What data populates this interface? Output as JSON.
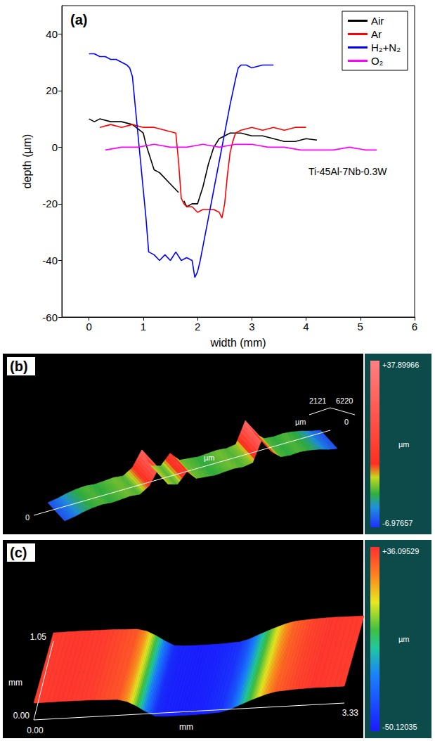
{
  "chart_data": {
    "type": "line",
    "title": "(a)",
    "x_label": "width (mm)",
    "y_label": "depth (µm)",
    "annotation": "Ti-45Al-7Nb-0.3W",
    "xlim": [
      -0.5,
      6
    ],
    "xticks": [
      0,
      1,
      2,
      3,
      4,
      5,
      6
    ],
    "ylim": [
      -60,
      50
    ],
    "yticks": [
      -60,
      -40,
      -20,
      0,
      20,
      40
    ],
    "grid": false,
    "legend": "top-right",
    "series": [
      {
        "name": "Air",
        "color": "#000000",
        "x": [
          0,
          0.1,
          0.2,
          0.4,
          0.6,
          0.8,
          1.0,
          1.05,
          1.1,
          1.2,
          1.3,
          1.4,
          1.5,
          1.6,
          1.65,
          1.7,
          1.75,
          1.8,
          1.9,
          2.0,
          2.1,
          2.2,
          2.3,
          2.4,
          2.6,
          2.8,
          3.0,
          3.2,
          3.4,
          3.6,
          3.8,
          4.0,
          4.2
        ],
        "values": [
          10,
          9,
          10,
          9,
          9,
          8,
          5,
          1,
          -2,
          -8,
          -9,
          -11,
          -13,
          -15,
          -16,
          null,
          -19,
          -21,
          -20,
          -20,
          -14,
          -6,
          0,
          3,
          5,
          5,
          4,
          4,
          3,
          2,
          2,
          3,
          2.5
        ]
      },
      {
        "name": "Ar",
        "color": "#ff0000",
        "x": [
          0.2,
          0.4,
          0.6,
          0.8,
          1.0,
          1.2,
          1.4,
          1.6,
          1.65,
          1.7,
          1.75,
          1.8,
          1.9,
          2.0,
          2.1,
          2.2,
          2.3,
          2.4,
          2.45,
          2.5,
          2.55,
          2.6,
          2.65,
          2.7,
          2.8,
          3.0,
          3.2,
          3.4,
          3.6,
          3.8,
          4.0
        ],
        "values": [
          7,
          8,
          7,
          8,
          7,
          7,
          6,
          5,
          -5,
          -18,
          -20,
          -21,
          -21,
          -23,
          -22,
          -22,
          -22,
          -23,
          -25,
          -20,
          -10,
          -2,
          2,
          5,
          6,
          7,
          6,
          7,
          6,
          7,
          7
        ]
      },
      {
        "name": "H₂+N₂",
        "color": "#0000ff",
        "x": [
          0,
          0.1,
          0.2,
          0.3,
          0.4,
          0.5,
          0.6,
          0.7,
          0.75,
          0.8,
          0.85,
          0.9,
          0.95,
          1.0,
          1.05,
          1.1,
          1.2,
          1.3,
          1.4,
          1.5,
          1.6,
          1.7,
          1.8,
          1.9,
          1.95,
          2.0,
          2.05,
          2.1,
          2.2,
          2.3,
          2.4,
          2.5,
          2.6,
          2.7,
          2.75,
          2.8,
          2.9,
          3.0,
          3.2,
          3.4
        ],
        "values": [
          33,
          33,
          32,
          32,
          31,
          31,
          30,
          29,
          28,
          25,
          15,
          5,
          -5,
          -15,
          -25,
          -37,
          -38,
          -40,
          -38,
          -40,
          -37,
          -40,
          -39,
          -40,
          -46,
          -44,
          -40,
          -35,
          -25,
          -15,
          -5,
          5,
          15,
          24,
          28,
          29,
          29,
          28,
          29,
          29
        ]
      },
      {
        "name": "O₂",
        "color": "#ff00ff",
        "x": [
          0.3,
          0.6,
          0.9,
          1.2,
          1.5,
          1.8,
          2.1,
          2.4,
          2.7,
          3.0,
          3.3,
          3.6,
          3.9,
          4.2,
          4.5,
          4.8,
          5.1,
          5.3
        ],
        "values": [
          -1,
          0,
          0,
          1,
          0,
          0,
          1,
          0,
          1,
          1,
          0,
          0,
          -1,
          -1,
          -1,
          0,
          -1,
          -1
        ]
      }
    ]
  },
  "images": [
    {
      "label": "(b)",
      "texts": {
        "start": "0",
        "unit_middle": "µm",
        "width": "2121",
        "length": "6220",
        "unit_corner": "µm",
        "corner": "0"
      },
      "colorbar": {
        "max": 37.89966,
        "max_label": "+37.89966",
        "min": -6.97657,
        "min_label": "-6.97657",
        "unit": "µm"
      },
      "profile_um": [
        -5,
        -3,
        0,
        2,
        3,
        2,
        3,
        4,
        3,
        10,
        28,
        6,
        3,
        15,
        4,
        3,
        2,
        3,
        4,
        3,
        5,
        30,
        12,
        3,
        2,
        3,
        2,
        0,
        -3,
        -5
      ]
    },
    {
      "label": "(c)",
      "texts": {
        "width_max": "1.05",
        "width_unit": "mm",
        "width_min": "0.00",
        "length_min": "0.00",
        "length_unit": "mm",
        "length_max": "3.33"
      },
      "colorbar": {
        "max": 36.09529,
        "max_label": "+36.09529",
        "min": -50.12035,
        "min_label": "-50.12035",
        "unit": "µm"
      },
      "profile_mm": [
        0,
        0.3,
        0.6,
        0.9,
        1.0,
        1.1,
        1.2,
        1.3,
        1.4,
        1.6,
        1.8,
        2.0,
        2.1,
        2.2,
        2.3,
        2.4,
        2.5,
        2.6,
        2.8,
        3.0,
        3.33
      ],
      "profile_um": [
        34,
        35,
        34,
        30,
        20,
        0,
        -25,
        -45,
        -48,
        -49,
        -48,
        -44,
        -35,
        -20,
        -5,
        8,
        20,
        28,
        33,
        35,
        34
      ]
    }
  ]
}
